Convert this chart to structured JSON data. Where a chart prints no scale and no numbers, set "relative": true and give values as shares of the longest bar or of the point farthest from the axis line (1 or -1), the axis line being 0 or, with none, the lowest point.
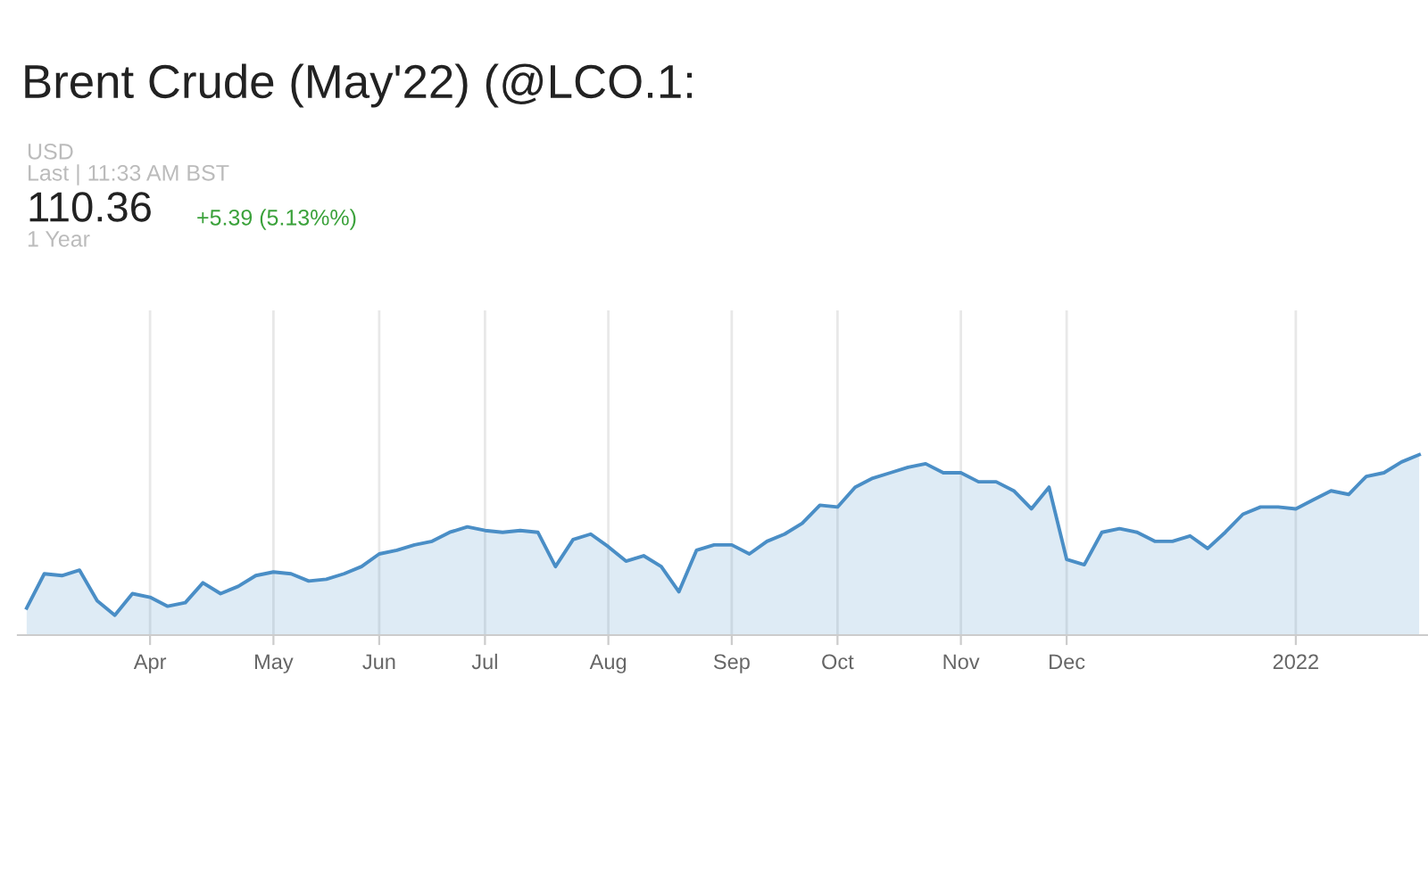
{
  "chart_data": {
    "type": "area",
    "title": "Brent Crude (May'22) (@LCO.1:",
    "relative": true,
    "grid": "x",
    "annotations": [
      "USD",
      "Last | 11:33 AM BST",
      "110.36",
      "+5.39 (5.13%%)",
      "1 Year"
    ],
    "categories": [
      null,
      null,
      null,
      null,
      null,
      null,
      null,
      "Apr",
      null,
      null,
      null,
      null,
      null,
      null,
      "May",
      null,
      null,
      null,
      null,
      null,
      "Jun",
      null,
      null,
      null,
      null,
      null,
      "Jul",
      null,
      null,
      null,
      null,
      null,
      null,
      "Aug",
      null,
      null,
      null,
      null,
      null,
      null,
      "Sep",
      null,
      null,
      null,
      null,
      null,
      "Oct",
      null,
      null,
      null,
      null,
      null,
      null,
      "Nov",
      null,
      null,
      null,
      null,
      null,
      "Dec",
      null,
      null,
      null,
      null,
      null,
      null,
      null,
      null,
      null,
      null,
      null,
      null,
      "2022",
      null,
      null,
      null,
      null,
      null,
      null,
      null
    ],
    "series": [
      {
        "color": "#4a8ec6",
        "values": [
          0.15,
          0.34,
          0.33,
          0.36,
          0.19,
          0.11,
          0.23,
          0.21,
          0.16,
          0.18,
          0.29,
          0.23,
          0.27,
          0.33,
          0.35,
          0.34,
          0.3,
          0.31,
          0.34,
          0.38,
          0.45,
          0.47,
          0.5,
          0.52,
          0.57,
          0.6,
          0.58,
          0.57,
          0.58,
          0.57,
          0.38,
          0.53,
          0.56,
          0.49,
          0.41,
          0.44,
          0.38,
          0.24,
          0.47,
          0.5,
          0.5,
          0.45,
          0.52,
          0.56,
          0.62,
          0.72,
          0.71,
          0.82,
          0.87,
          0.9,
          0.93,
          0.95,
          0.9,
          0.9,
          0.85,
          0.85,
          0.8,
          0.7,
          0.82,
          0.42,
          0.39,
          0.57,
          0.59,
          0.57,
          0.52,
          0.52,
          0.55,
          0.48,
          0.57,
          0.67,
          0.71,
          0.71,
          0.7,
          0.75,
          0.8,
          0.78,
          0.88,
          0.9,
          0.96,
          1.0
        ]
      }
    ]
  }
}
